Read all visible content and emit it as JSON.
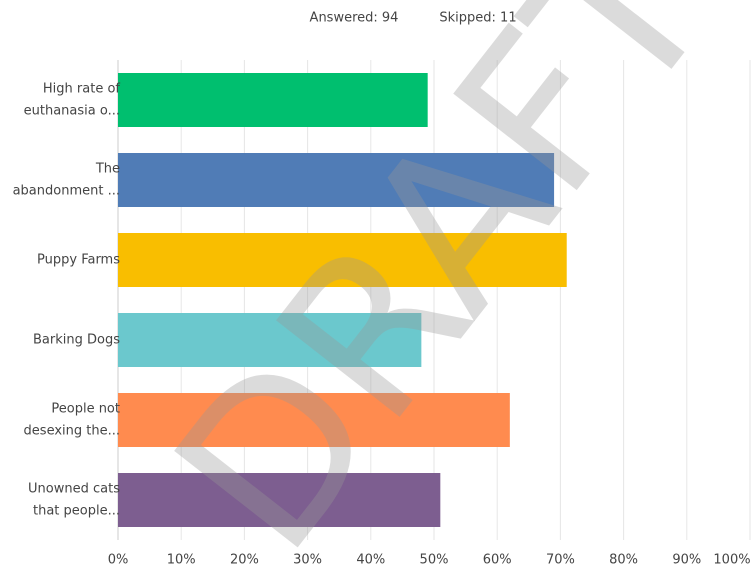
{
  "chart_data": {
    "type": "hbar",
    "subtitle": [
      "Answered: 94",
      "Skipped: 11"
    ],
    "watermark": "DRAFT",
    "categories": [
      [
        "High rate of",
        "euthanasia o..."
      ],
      [
        "The",
        "abandonment ..."
      ],
      [
        "Puppy Farms"
      ],
      [
        "Barking Dogs"
      ],
      [
        "People not",
        "desexing the..."
      ],
      [
        "Unowned cats",
        "that people..."
      ]
    ],
    "values": [
      49,
      69,
      71,
      48,
      62,
      51
    ],
    "colors": [
      "#00bf6f",
      "#507cb6",
      "#f9be00",
      "#6bc8cd",
      "#ff8b4f",
      "#7d5e90"
    ],
    "xlim": [
      0,
      100
    ],
    "xticks": [
      {
        "value": 0,
        "label": "0%"
      },
      {
        "value": 10,
        "label": "10%"
      },
      {
        "value": 20,
        "label": "20%"
      },
      {
        "value": 30,
        "label": "30%"
      },
      {
        "value": 40,
        "label": "40%"
      },
      {
        "value": 50,
        "label": "50%"
      },
      {
        "value": 60,
        "label": "60%"
      },
      {
        "value": 70,
        "label": "70%"
      },
      {
        "value": 80,
        "label": "80%"
      },
      {
        "value": 90,
        "label": "90%"
      },
      {
        "value": 100,
        "label": "100%"
      }
    ],
    "grid": true
  }
}
